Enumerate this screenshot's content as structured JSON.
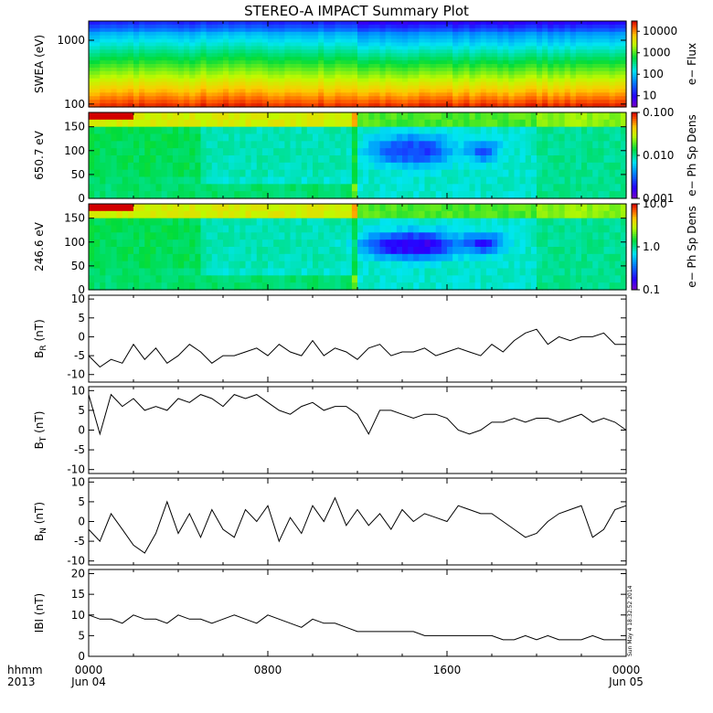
{
  "title": "STEREO-A IMPACT Summary Plot",
  "corner": {
    "line1": "hhmm",
    "line2": "2013"
  },
  "x_axis": {
    "ticks": [
      {
        "hours": 0,
        "time": "0000",
        "date": "Jun 04"
      },
      {
        "hours": 8,
        "time": "0800",
        "date": ""
      },
      {
        "hours": 16,
        "time": "1600",
        "date": ""
      },
      {
        "hours": 24,
        "time": "0000",
        "date": "Jun 05"
      }
    ],
    "range_hours": [
      0,
      24
    ]
  },
  "timestamp": "Sun May  4 18:32:52 2014",
  "chart_data": [
    {
      "type": "heatmap",
      "id": "swea",
      "ylabel": "SWEA (eV)",
      "yscale": "log",
      "ylim": [
        90,
        2000
      ],
      "yticks": [
        {
          "value": 1000,
          "label": "1000"
        },
        {
          "value": 100,
          "label": "100"
        }
      ],
      "colorbar": {
        "label": "e− Flux",
        "scale": "log",
        "range": [
          3,
          30000
        ],
        "ticks": [
          {
            "value": 10000,
            "label": "10000"
          },
          {
            "value": 1000,
            "label": "1000"
          },
          {
            "value": 100,
            "label": "100"
          },
          {
            "value": 10,
            "label": "10"
          }
        ]
      }
    },
    {
      "type": "heatmap",
      "id": "pad650",
      "ylabel": "650.7 eV",
      "yscale": "linear",
      "ylim": [
        0,
        180
      ],
      "yticks": [
        {
          "value": 0,
          "label": "0"
        },
        {
          "value": 50,
          "label": "50"
        },
        {
          "value": 100,
          "label": "100"
        },
        {
          "value": 150,
          "label": "150"
        }
      ],
      "blobs": [
        {
          "t": 13.9,
          "pitch": 100,
          "dt": 1.3,
          "dp": 28,
          "v": 0.2
        },
        {
          "t": 15.0,
          "pitch": 100,
          "dt": 1.2,
          "dp": 28,
          "v": 0.2
        },
        {
          "t": 17.6,
          "pitch": 100,
          "dt": 0.7,
          "dp": 22,
          "v": 0.22
        }
      ],
      "colorbar": {
        "label": "e− Ph Sp Dens",
        "scale": "log",
        "range": [
          0.001,
          0.1
        ],
        "ticks": [
          {
            "value": 0.1,
            "label": "0.100"
          },
          {
            "value": 0.01,
            "label": "0.010"
          },
          {
            "value": 0.001,
            "label": "0.001"
          }
        ]
      }
    },
    {
      "type": "heatmap",
      "id": "pad246",
      "ylabel": "246.6 eV",
      "yscale": "linear",
      "ylim": [
        0,
        180
      ],
      "yticks": [
        {
          "value": 0,
          "label": "0"
        },
        {
          "value": 50,
          "label": "50"
        },
        {
          "value": 100,
          "label": "100"
        },
        {
          "value": 150,
          "label": "150"
        }
      ],
      "blobs": [
        {
          "t": 13.9,
          "pitch": 93,
          "dt": 1.6,
          "dp": 24,
          "v": 0.1
        },
        {
          "t": 15.0,
          "pitch": 93,
          "dt": 1.4,
          "dp": 24,
          "v": 0.1
        },
        {
          "t": 17.6,
          "pitch": 97,
          "dt": 0.9,
          "dp": 20,
          "v": 0.14
        }
      ],
      "colorbar": {
        "label": "e− Ph Sp Dens",
        "scale": "log",
        "range": [
          0.1,
          10
        ],
        "ticks": [
          {
            "value": 10,
            "label": "10.0"
          },
          {
            "value": 1,
            "label": "1.0"
          },
          {
            "value": 0.1,
            "label": "0.1"
          }
        ]
      }
    },
    {
      "type": "line",
      "id": "br",
      "ylabel": "B",
      "ylabel_sub": "R",
      "ylabel_unit": " (nT)",
      "ylim": [
        -12,
        11
      ],
      "yticks": [
        {
          "value": 10,
          "label": "10"
        },
        {
          "value": 5,
          "label": "5"
        },
        {
          "value": 0,
          "label": "0"
        },
        {
          "value": -5,
          "label": "-5"
        },
        {
          "value": -10,
          "label": "-10"
        }
      ],
      "x": [
        0,
        0.5,
        1,
        1.5,
        2,
        2.5,
        3,
        3.5,
        4,
        4.5,
        5,
        5.5,
        6,
        6.5,
        7,
        7.5,
        8,
        8.5,
        9,
        9.5,
        10,
        10.5,
        11,
        11.5,
        12,
        12.5,
        13,
        13.5,
        14,
        14.5,
        15,
        15.5,
        16,
        16.5,
        17,
        17.5,
        18,
        18.5,
        19,
        19.5,
        20,
        20.5,
        21,
        21.5,
        22,
        22.5,
        23,
        23.5,
        24
      ],
      "y": [
        -5,
        -8,
        -6,
        -7,
        -2,
        -6,
        -3,
        -7,
        -5,
        -2,
        -4,
        -7,
        -5,
        -5,
        -4,
        -3,
        -5,
        -2,
        -4,
        -5,
        -1,
        -5,
        -3,
        -4,
        -6,
        -3,
        -2,
        -5,
        -4,
        -4,
        -3,
        -5,
        -4,
        -3,
        -4,
        -5,
        -2,
        -4,
        -1,
        1,
        2,
        -2,
        0,
        -1,
        0,
        0,
        1,
        -2,
        -2
      ]
    },
    {
      "type": "line",
      "id": "bt",
      "ylabel": "B",
      "ylabel_sub": "T",
      "ylabel_unit": " (nT)",
      "ylim": [
        -11,
        11
      ],
      "yticks": [
        {
          "value": 10,
          "label": "10"
        },
        {
          "value": 5,
          "label": "5"
        },
        {
          "value": 0,
          "label": "0"
        },
        {
          "value": -5,
          "label": "-5"
        },
        {
          "value": -10,
          "label": "-10"
        }
      ],
      "x": [
        0,
        0.5,
        1,
        1.5,
        2,
        2.5,
        3,
        3.5,
        4,
        4.5,
        5,
        5.5,
        6,
        6.5,
        7,
        7.5,
        8,
        8.5,
        9,
        9.5,
        10,
        10.5,
        11,
        11.5,
        12,
        12.5,
        13,
        13.5,
        14,
        14.5,
        15,
        15.5,
        16,
        16.5,
        17,
        17.5,
        18,
        18.5,
        19,
        19.5,
        20,
        20.5,
        21,
        21.5,
        22,
        22.5,
        23,
        23.5,
        24
      ],
      "y": [
        9,
        -1,
        9,
        6,
        8,
        5,
        6,
        5,
        8,
        7,
        9,
        8,
        6,
        9,
        8,
        9,
        7,
        5,
        4,
        6,
        7,
        5,
        6,
        6,
        4,
        -1,
        5,
        5,
        4,
        3,
        4,
        4,
        3,
        0,
        -1,
        0,
        2,
        2,
        3,
        2,
        3,
        3,
        2,
        3,
        4,
        2,
        3,
        2,
        0
      ]
    },
    {
      "type": "line",
      "id": "bn",
      "ylabel": "B",
      "ylabel_sub": "N",
      "ylabel_unit": " (nT)",
      "ylim": [
        -11,
        11
      ],
      "yticks": [
        {
          "value": 10,
          "label": "10"
        },
        {
          "value": 5,
          "label": "5"
        },
        {
          "value": 0,
          "label": "0"
        },
        {
          "value": -5,
          "label": "-5"
        },
        {
          "value": -10,
          "label": "-10"
        }
      ],
      "x": [
        0,
        0.5,
        1,
        1.5,
        2,
        2.5,
        3,
        3.5,
        4,
        4.5,
        5,
        5.5,
        6,
        6.5,
        7,
        7.5,
        8,
        8.5,
        9,
        9.5,
        10,
        10.5,
        11,
        11.5,
        12,
        12.5,
        13,
        13.5,
        14,
        14.5,
        15,
        15.5,
        16,
        16.5,
        17,
        17.5,
        18,
        18.5,
        19,
        19.5,
        20,
        20.5,
        21,
        21.5,
        22,
        22.5,
        23,
        23.5,
        24
      ],
      "y": [
        -2,
        -5,
        2,
        -2,
        -6,
        -8,
        -3,
        5,
        -3,
        2,
        -4,
        3,
        -2,
        -4,
        3,
        0,
        4,
        -5,
        1,
        -3,
        4,
        0,
        6,
        -1,
        3,
        -1,
        2,
        -2,
        3,
        0,
        2,
        1,
        0,
        4,
        3,
        2,
        2,
        0,
        -2,
        -4,
        -3,
        0,
        2,
        3,
        4,
        -4,
        -2,
        3,
        4
      ]
    },
    {
      "type": "line",
      "id": "bmag",
      "ylabel": "IBI (nT)",
      "ylabel_sub": "",
      "ylabel_unit": "",
      "ylim": [
        0,
        21
      ],
      "yticks": [
        {
          "value": 20,
          "label": "20"
        },
        {
          "value": 15,
          "label": "15"
        },
        {
          "value": 10,
          "label": "10"
        },
        {
          "value": 5,
          "label": "5"
        },
        {
          "value": 0,
          "label": "0"
        }
      ],
      "x": [
        0,
        0.5,
        1,
        1.5,
        2,
        2.5,
        3,
        3.5,
        4,
        4.5,
        5,
        5.5,
        6,
        6.5,
        7,
        7.5,
        8,
        8.5,
        9,
        9.5,
        10,
        10.5,
        11,
        11.5,
        12,
        12.5,
        13,
        13.5,
        14,
        14.5,
        15,
        15.5,
        16,
        16.5,
        17,
        17.5,
        18,
        18.5,
        19,
        19.5,
        20,
        20.5,
        21,
        21.5,
        22,
        22.5,
        23,
        23.5,
        24
      ],
      "y": [
        10,
        9,
        9,
        8,
        10,
        9,
        9,
        8,
        10,
        9,
        9,
        8,
        9,
        10,
        9,
        8,
        10,
        9,
        8,
        7,
        9,
        8,
        8,
        7,
        6,
        6,
        6,
        6,
        6,
        6,
        5,
        5,
        5,
        5,
        5,
        5,
        5,
        4,
        4,
        5,
        4,
        5,
        4,
        4,
        4,
        5,
        4,
        4,
        4
      ]
    }
  ]
}
